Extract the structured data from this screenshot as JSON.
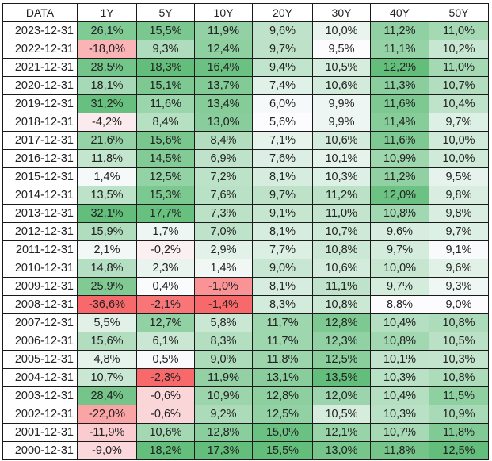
{
  "table": {
    "headers": [
      "DATA",
      "1Y",
      "5Y",
      "10Y",
      "20Y",
      "30Y",
      "40Y",
      "50Y"
    ],
    "rows": [
      [
        "2023-12-31",
        "26,1%",
        "15,5%",
        "11,9%",
        "9,6%",
        "10,0%",
        "11,2%",
        "11,0%"
      ],
      [
        "2022-12-31",
        "-18,0%",
        "9,3%",
        "12,4%",
        "9,7%",
        "9,5%",
        "11,1%",
        "10,2%"
      ],
      [
        "2021-12-31",
        "28,5%",
        "18,3%",
        "16,4%",
        "9,4%",
        "10,5%",
        "12,2%",
        "11,0%"
      ],
      [
        "2020-12-31",
        "18,1%",
        "15,1%",
        "13,7%",
        "7,4%",
        "10,6%",
        "11,3%",
        "10,7%"
      ],
      [
        "2019-12-31",
        "31,2%",
        "11,6%",
        "13,4%",
        "6,0%",
        "9,9%",
        "11,6%",
        "10,4%"
      ],
      [
        "2018-12-31",
        "-4,2%",
        "8,4%",
        "13,0%",
        "5,6%",
        "9,9%",
        "11,4%",
        "9,7%"
      ],
      [
        "2017-12-31",
        "21,6%",
        "15,6%",
        "8,4%",
        "7,1%",
        "10,6%",
        "11,6%",
        "10,0%"
      ],
      [
        "2016-12-31",
        "11,8%",
        "14,5%",
        "6,9%",
        "7,6%",
        "10,1%",
        "10,9%",
        "10,0%"
      ],
      [
        "2015-12-31",
        "1,4%",
        "12,5%",
        "7,2%",
        "8,1%",
        "10,3%",
        "11,2%",
        "9,5%"
      ],
      [
        "2014-12-31",
        "13,5%",
        "15,3%",
        "7,6%",
        "9,7%",
        "11,2%",
        "12,0%",
        "9,8%"
      ],
      [
        "2013-12-31",
        "32,1%",
        "17,7%",
        "7,3%",
        "9,1%",
        "11,0%",
        "10,8%",
        "9,8%"
      ],
      [
        "2012-12-31",
        "15,9%",
        "1,7%",
        "7,0%",
        "8,1%",
        "10,7%",
        "9,6%",
        "9,7%"
      ],
      [
        "2011-12-31",
        "2,1%",
        "-0,2%",
        "2,9%",
        "7,7%",
        "10,8%",
        "9,7%",
        "9,1%"
      ],
      [
        "2010-12-31",
        "14,8%",
        "2,3%",
        "1,4%",
        "9,0%",
        "10,6%",
        "10,0%",
        "9,6%"
      ],
      [
        "2009-12-31",
        "25,9%",
        "0,4%",
        "-1,0%",
        "8,1%",
        "11,1%",
        "9,7%",
        "9,3%"
      ],
      [
        "2008-12-31",
        "-36,6%",
        "-2,1%",
        "-1,4%",
        "8,3%",
        "10,8%",
        "8,8%",
        "9,0%"
      ],
      [
        "2007-12-31",
        "5,5%",
        "12,7%",
        "5,8%",
        "11,7%",
        "12,8%",
        "10,4%",
        "10,8%"
      ],
      [
        "2006-12-31",
        "15,6%",
        "6,1%",
        "8,3%",
        "11,7%",
        "12,3%",
        "10,8%",
        "10,5%"
      ],
      [
        "2005-12-31",
        "4,8%",
        "0,5%",
        "9,0%",
        "11,8%",
        "12,5%",
        "10,1%",
        "10,3%"
      ],
      [
        "2004-12-31",
        "10,7%",
        "-2,3%",
        "11,9%",
        "13,1%",
        "13,5%",
        "10,3%",
        "10,8%"
      ],
      [
        "2003-12-31",
        "28,4%",
        "-0,6%",
        "10,9%",
        "12,8%",
        "12,0%",
        "10,4%",
        "11,5%"
      ],
      [
        "2002-12-31",
        "-22,0%",
        "-0,6%",
        "9,2%",
        "12,5%",
        "10,5%",
        "10,3%",
        "10,9%"
      ],
      [
        "2001-12-31",
        "-11,9%",
        "10,6%",
        "12,8%",
        "15,0%",
        "12,1%",
        "10,7%",
        "11,8%"
      ],
      [
        "2000-12-31",
        "-9,0%",
        "18,2%",
        "17,3%",
        "15,5%",
        "13,0%",
        "11,8%",
        "12,5%"
      ]
    ]
  },
  "colors": {
    "positive_max": "#63be7b",
    "neutral": "#fcfcff",
    "negative_max": "#f8696b",
    "border": "#1a1a1a"
  }
}
